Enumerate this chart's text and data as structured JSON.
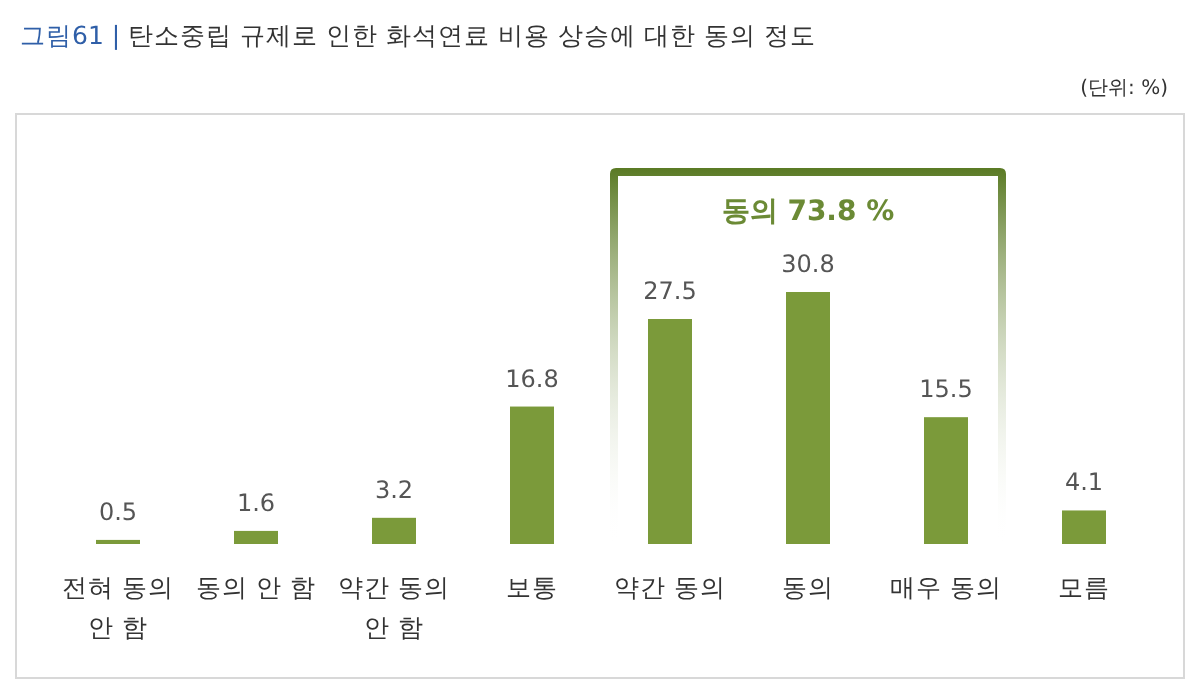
{
  "chart_data": {
    "type": "bar",
    "title": "탄소중립 규제로 인한 화석연료 비용 상승에 대한 동의 정도",
    "categories": [
      "전혀 동의 안 함",
      "동의 안 함",
      "약간 동의 안 함",
      "보통",
      "약간 동의",
      "동의",
      "매우 동의",
      "모름"
    ],
    "values": [
      0.5,
      1.6,
      3.2,
      16.8,
      27.5,
      30.8,
      15.5,
      4.1
    ],
    "color": "#7b9a3a",
    "data_labels": true,
    "annotations": [
      "그림61 |",
      "(단위: %)",
      "동의 73.8 %"
    ]
  }
}
